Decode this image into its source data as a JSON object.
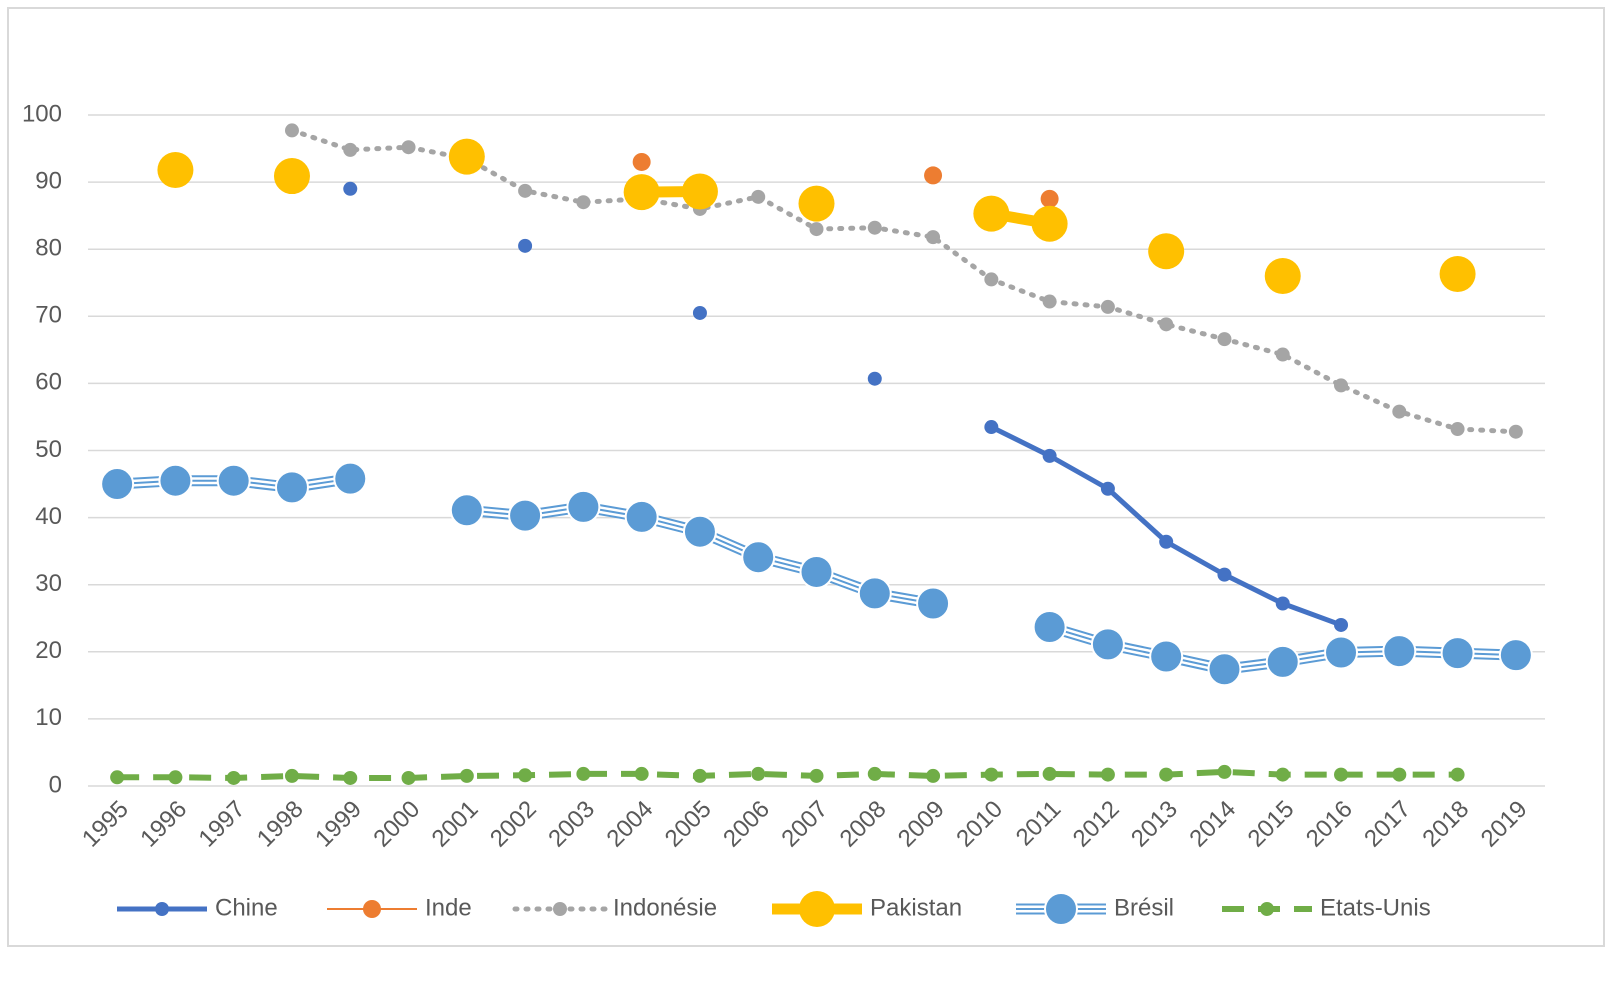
{
  "chart_data": {
    "type": "line",
    "categories": [
      "1995",
      "1996",
      "1997",
      "1998",
      "1999",
      "2000",
      "2001",
      "2002",
      "2003",
      "2004",
      "2005",
      "2006",
      "2007",
      "2008",
      "2009",
      "2010",
      "2011",
      "2012",
      "2013",
      "2014",
      "2015",
      "2016",
      "2017",
      "2018",
      "2019"
    ],
    "series": [
      {
        "name": "Chine",
        "color": "#4472c4",
        "values": [
          null,
          null,
          null,
          null,
          89,
          null,
          null,
          80.5,
          null,
          null,
          70.5,
          null,
          null,
          60.7,
          null,
          53.5,
          49.2,
          44.3,
          36.4,
          31.5,
          27.2,
          24,
          null,
          null,
          null
        ]
      },
      {
        "name": "Inde",
        "color": "#ed7d31",
        "values": [
          null,
          93,
          null,
          null,
          null,
          null,
          null,
          null,
          null,
          93,
          null,
          null,
          null,
          null,
          91,
          null,
          87.5,
          null,
          null,
          null,
          null,
          null,
          null,
          null,
          null
        ]
      },
      {
        "name": "Indonésie",
        "color": "#a5a5a5",
        "values": [
          null,
          null,
          null,
          97.7,
          94.8,
          95.2,
          93.5,
          88.7,
          87,
          87.5,
          86,
          87.8,
          83,
          83.2,
          81.8,
          75.5,
          72.2,
          71.4,
          68.8,
          66.6,
          64.3,
          59.7,
          55.8,
          53.2,
          52.8
        ]
      },
      {
        "name": "Pakistan",
        "color": "#ffc000",
        "values": [
          null,
          91.8,
          null,
          90.9,
          null,
          null,
          93.8,
          null,
          null,
          88.5,
          88.6,
          null,
          86.8,
          null,
          null,
          85.3,
          83.8,
          null,
          79.7,
          null,
          76,
          null,
          null,
          76.3,
          null
        ]
      },
      {
        "name": "Brésil",
        "color": "#5b9bd5",
        "values": [
          45,
          45.5,
          45.5,
          44.5,
          45.8,
          null,
          41.1,
          40.3,
          41.6,
          40.1,
          37.9,
          34.1,
          31.9,
          28.7,
          27.2,
          null,
          23.7,
          21.1,
          19.3,
          17.4,
          18.5,
          19.9,
          20.1,
          19.8,
          19.5
        ]
      },
      {
        "name": "Etats-Unis",
        "color": "#70ad47",
        "values": [
          1.3,
          1.3,
          1.2,
          1.5,
          1.2,
          1.2,
          1.5,
          1.6,
          1.8,
          1.8,
          1.5,
          1.8,
          1.5,
          1.8,
          1.5,
          1.7,
          1.8,
          1.7,
          1.7,
          2.1,
          1.7,
          1.7,
          1.7,
          1.7,
          null
        ]
      }
    ],
    "ylim": [
      0,
      100
    ],
    "yticks": [
      0,
      10,
      20,
      30,
      40,
      50,
      60,
      70,
      80,
      90,
      100
    ],
    "grid": true,
    "legend": "bottom"
  }
}
